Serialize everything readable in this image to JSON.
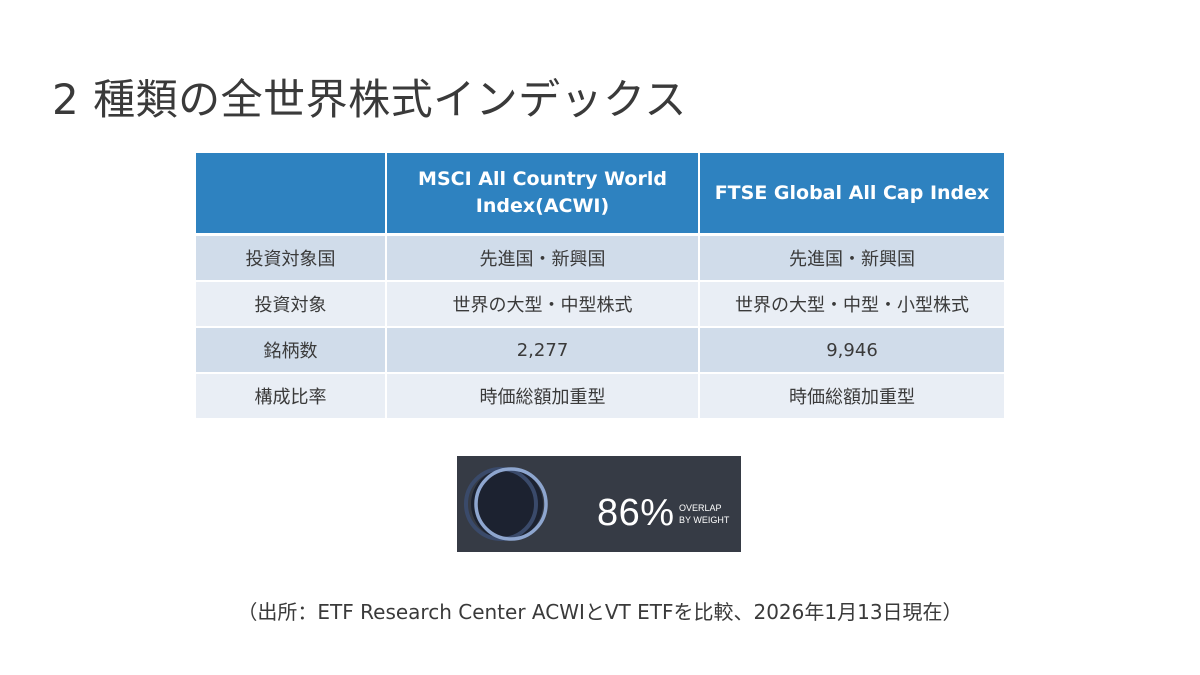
{
  "slide": {
    "title": "2 種類の全世界株式インデックス"
  },
  "table": {
    "headers": [
      "",
      "MSCI All Country World Index(ACWI)",
      "FTSE Global All Cap Index"
    ],
    "rows": [
      [
        "投資対象国",
        "先進国・新興国",
        "先進国・新興国"
      ],
      [
        "投資対象",
        "世界の大型・中型株式",
        "世界の大型・中型・小型株式"
      ],
      [
        "銘柄数",
        "2,277",
        "9,946"
      ],
      [
        "構成比率",
        "時価総額加重型",
        "時価総額加重型"
      ]
    ]
  },
  "overlap": {
    "value": "86%",
    "label_line1": "OVERLAP",
    "label_line2": "BY WEIGHT",
    "colors": {
      "background": "#363b45",
      "ring_left": "#3a4a6a",
      "ring_right": "#8ea6cf"
    }
  },
  "source": "（出所：ETF Research Center ACWIとVT ETFを比較、2026年1月13日現在）",
  "colors": {
    "header": "#2e82c0",
    "row_dark": "#d0dcea",
    "row_light": "#e9eef5",
    "text": "#3a3a3a"
  }
}
